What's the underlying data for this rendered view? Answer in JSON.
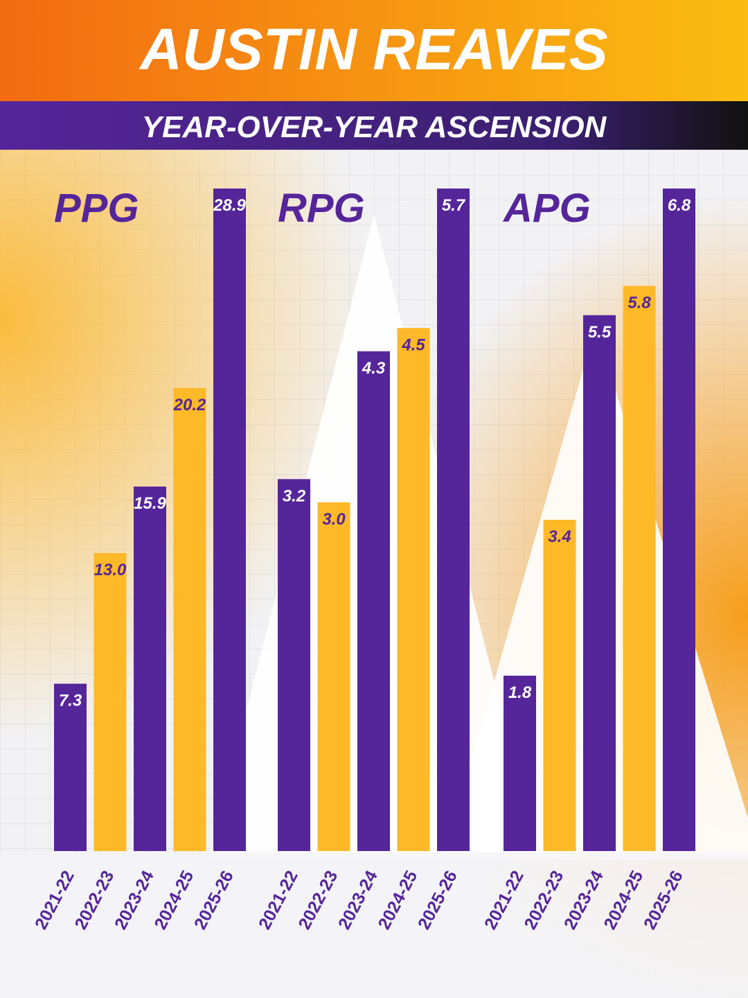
{
  "header": {
    "title": "AUSTIN REAVES",
    "subtitle": "YEAR-OVER-YEAR ASCENSION"
  },
  "chart_data": [
    {
      "type": "bar",
      "title": "PPG",
      "categories": [
        "2021-22",
        "2022-23",
        "2023-24",
        "2024-25",
        "2025-26"
      ],
      "values": [
        7.3,
        13.0,
        15.9,
        20.2,
        28.9
      ],
      "value_labels": [
        "7.3",
        "13.0",
        "15.9",
        "20.2",
        "28.9"
      ],
      "colors": [
        "#55259a",
        "#fdb927",
        "#55259a",
        "#fdb927",
        "#55259a"
      ]
    },
    {
      "type": "bar",
      "title": "RPG",
      "categories": [
        "2021-22",
        "2022-23",
        "2023-24",
        "2024-25",
        "2025-26"
      ],
      "values": [
        3.2,
        3.0,
        4.3,
        4.5,
        5.7
      ],
      "value_labels": [
        "3.2",
        "3.0",
        "4.3",
        "4.5",
        "5.7"
      ],
      "colors": [
        "#55259a",
        "#fdb927",
        "#55259a",
        "#fdb927",
        "#55259a"
      ]
    },
    {
      "type": "bar",
      "title": "APG",
      "categories": [
        "2021-22",
        "2022-23",
        "2023-24",
        "2024-25",
        "2025-26"
      ],
      "values": [
        1.8,
        3.4,
        5.5,
        5.8,
        6.8
      ],
      "value_labels": [
        "1.8",
        "3.4",
        "5.5",
        "5.8",
        "6.8"
      ],
      "colors": [
        "#55259a",
        "#fdb927",
        "#55259a",
        "#fdb927",
        "#55259a"
      ]
    }
  ]
}
